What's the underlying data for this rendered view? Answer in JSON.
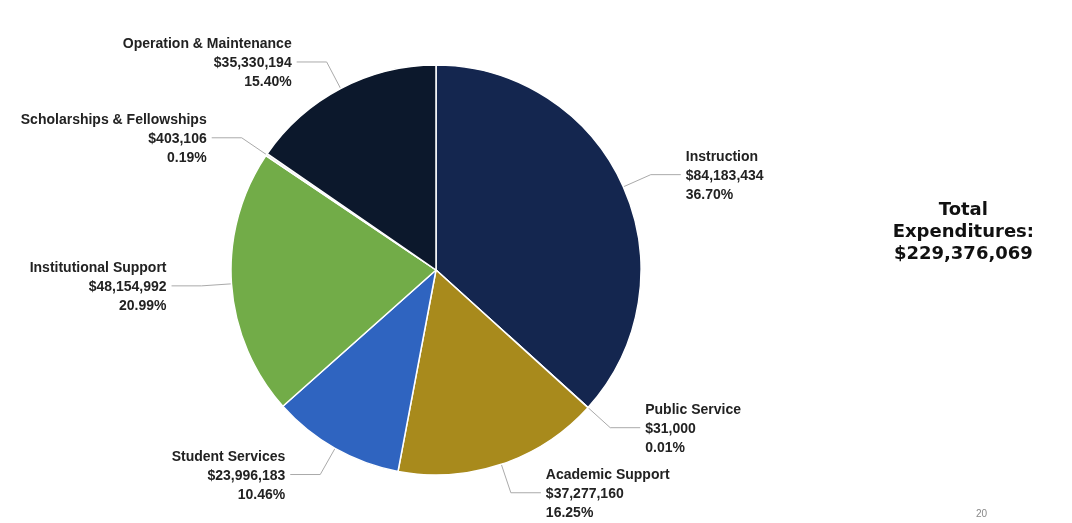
{
  "chart_data": {
    "type": "pie",
    "categories": [
      "Instruction",
      "Public Service",
      "Academic Support",
      "Student Services",
      "Institutional Support",
      "Scholarships & Fellowships",
      "Operation & Maintenance"
    ],
    "values": [
      84183434,
      31000,
      37277160,
      23996183,
      48154992,
      403106,
      35330194
    ],
    "value_labels": [
      "$84,183,434\n36.70%",
      "$31,000\n0.01%",
      "$37,277,160\n16.25%",
      "$23,996,183\n10.46%",
      "$48,154,992\n20.99%",
      "$403,106\n0.19%",
      "$35,330,194\n15.40%"
    ],
    "colors": [
      "#14264f",
      "#d9d9d9",
      "#a88a1c",
      "#2f64c0",
      "#72ac48",
      "#e6e6e6",
      "#0c182c"
    ],
    "annotations": [
      "Total\nExpenditures:\n$229,376,069",
      "20"
    ],
    "legend": false
  }
}
